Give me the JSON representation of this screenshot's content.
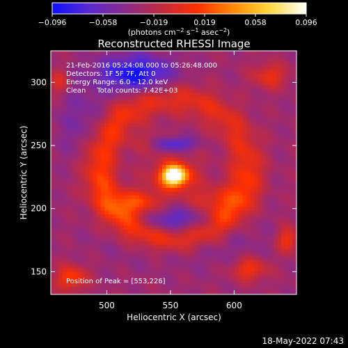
{
  "colorbar": {
    "ticks": [
      "−0.096",
      "−0.058",
      "−0.019",
      "0.019",
      "0.058",
      "0.096"
    ],
    "unit_parts": [
      "(photons cm",
      "−2",
      " s",
      "−1",
      " asec",
      "−2",
      ")"
    ],
    "colors": [
      "#1010ff",
      "#5a2ad0",
      "#8a2a8a",
      "#c02a40",
      "#ff3000",
      "#ff8a00",
      "#ffd840",
      "#ffffff"
    ]
  },
  "chart_data": {
    "type": "heatmap",
    "title": "Reconstructed RHESSI Image",
    "xlabel": "Heliocentric X (arcsec)",
    "ylabel": "Heliocentric Y (arcsec)",
    "x_ticks": [
      "500",
      "550",
      "600"
    ],
    "y_ticks": [
      "150",
      "200",
      "250",
      "300"
    ],
    "xlim": [
      456,
      649
    ],
    "ylim": [
      132,
      325
    ],
    "zlim": [
      -0.096,
      0.096
    ],
    "info_lines": [
      "21-Feb-2016 05:24:08.000 to 05:26:48.000",
      "Detectors: 1F 5F 7F, Att 0",
      "Energy Range: 6.0 - 12.0 keV",
      "Clean     Total counts: 7.42E+03"
    ],
    "peak_label": "Position of Peak = [553,226]",
    "peak": [
      553,
      226
    ]
  },
  "footer": {
    "timestamp": "18-May-2022 07:43"
  }
}
